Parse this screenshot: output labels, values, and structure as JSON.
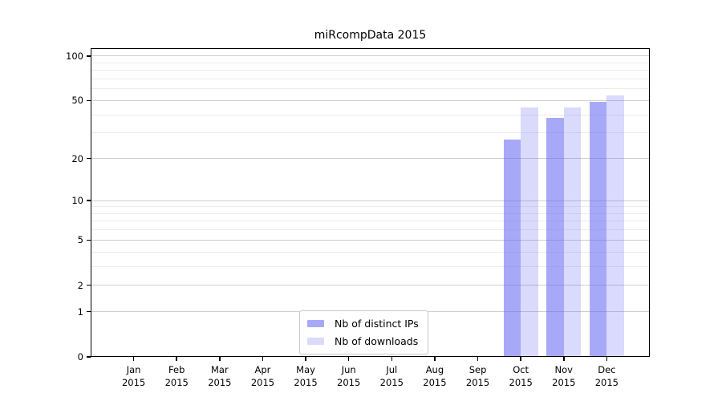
{
  "chart_data": {
    "type": "bar",
    "title": "miRcompData 2015",
    "categories": [
      "Jan 2015",
      "Feb 2015",
      "Mar 2015",
      "Apr 2015",
      "May 2015",
      "Jun 2015",
      "Jul 2015",
      "Aug 2015",
      "Sep 2015",
      "Oct 2015",
      "Nov 2015",
      "Dec 2015"
    ],
    "month_labels": [
      "Jan",
      "Feb",
      "Mar",
      "Apr",
      "May",
      "Jun",
      "Jul",
      "Aug",
      "Sep",
      "Oct",
      "Nov",
      "Dec"
    ],
    "year_labels": [
      "2015",
      "2015",
      "2015",
      "2015",
      "2015",
      "2015",
      "2015",
      "2015",
      "2015",
      "2015",
      "2015",
      "2015"
    ],
    "series": [
      {
        "name": "Nb of distinct IPs",
        "color": "rgba(102,102,245,0.57)",
        "values": [
          0,
          0,
          0,
          0,
          0,
          0,
          0,
          0,
          0,
          27,
          38,
          49
        ]
      },
      {
        "name": "Nb of downloads",
        "color": "rgba(102,102,245,0.24)",
        "values": [
          0,
          0,
          0,
          0,
          0,
          0,
          0,
          0,
          0,
          45,
          45,
          54
        ]
      }
    ],
    "xlabel": "",
    "ylabel": "",
    "yscale": "log10(1+y)",
    "yticks": [
      0,
      1,
      2,
      5,
      10,
      20,
      50,
      100
    ],
    "ytick_labels": [
      "0",
      "1",
      "2",
      "5",
      "10",
      "20",
      "50",
      "100"
    ],
    "minor_gridlines": [
      3,
      4,
      6,
      7,
      8,
      9,
      30,
      40,
      60,
      70,
      80,
      90
    ],
    "ylim": [
      0,
      113
    ],
    "grid": true,
    "legend_position": "lower center"
  }
}
